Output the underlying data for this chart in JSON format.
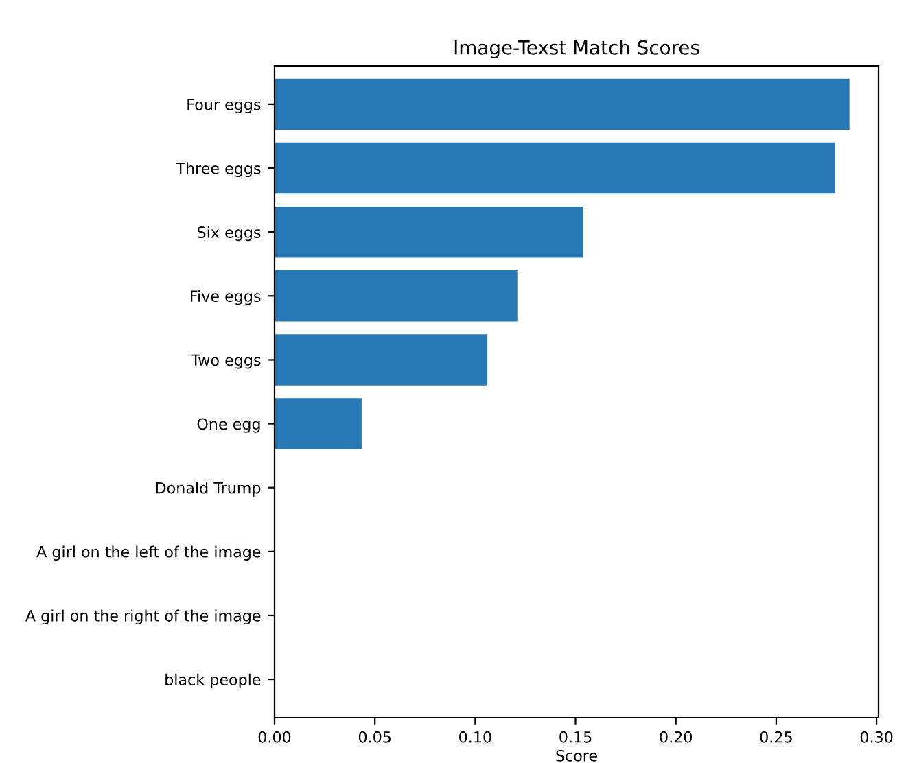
{
  "chart_data": {
    "type": "bar",
    "orientation": "horizontal",
    "title": "Image-Texst Match Scores",
    "xlabel": "Score",
    "categories": [
      "Four eggs",
      "Three eggs",
      "Six eggs",
      "Five eggs",
      "Two eggs",
      "One egg",
      "Donald Trump",
      "A girl on the left of the image",
      "A girl on the right of the image",
      "black people"
    ],
    "values": [
      0.2865,
      0.2793,
      0.1537,
      0.121,
      0.1061,
      0.0434,
      0,
      0,
      0,
      0
    ],
    "color": "#2878b5",
    "xlim": [
      0,
      0.301
    ],
    "xticks": [
      {
        "value": 0,
        "label": "0.00"
      },
      {
        "value": 0.05,
        "label": "0.05"
      },
      {
        "value": 0.1,
        "label": "0.10"
      },
      {
        "value": 0.15,
        "label": "0.15"
      },
      {
        "value": 0.2,
        "label": "0.20"
      },
      {
        "value": 0.25,
        "label": "0.25"
      },
      {
        "value": 0.3,
        "label": "0.30"
      }
    ],
    "grid": false,
    "legend": false
  }
}
